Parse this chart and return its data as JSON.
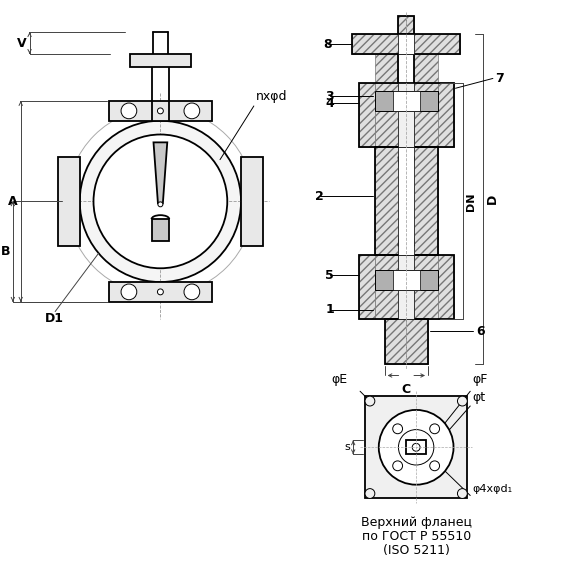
{
  "bg_color": "#ffffff",
  "lc": "#000000",
  "dim_color": "#444444",
  "hatch_color": "#777777",
  "gray_fill": "#d8d8d8",
  "light_gray": "#eeeeee",
  "title_line1": "Верхний фланец",
  "title_line2": "по ГОСТ Р 55510",
  "title_line3": "(ISO 5211)",
  "label_nxphid": "nxφd",
  "label_phiE": "φE",
  "label_phiF": "φF",
  "label_phit": "φt",
  "label_4xphid1": "φ4xφd₁",
  "label_s": "s"
}
